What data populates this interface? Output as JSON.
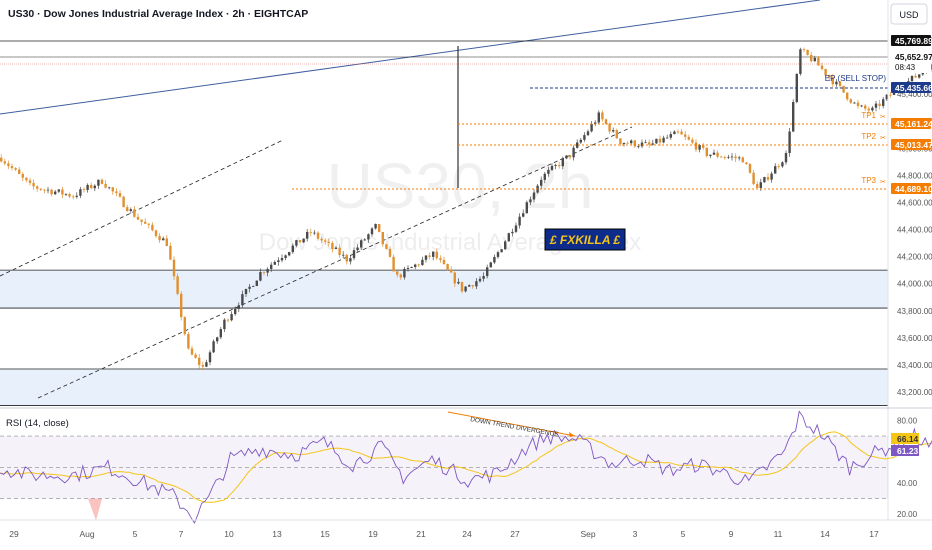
{
  "header": {
    "title": "US30 · Dow Jones Industrial Average Index · 2h · EIGHTCAP",
    "currency": "USD"
  },
  "watermark": {
    "symbol": "US30, 2h",
    "name": "Dow Jones Industrial Average Index"
  },
  "badge": {
    "text": "£ FXKILLA £",
    "bg": "#0d2b8a",
    "fg": "#f5c518"
  },
  "colors": {
    "up": "#4a4a4a",
    "down": "#e0902e",
    "trend": "#3f5fa0",
    "target": "#f57c00",
    "entry": "#1e3a8a",
    "rsi": "#7e57c2",
    "rsi_ma": "#f5c518",
    "zone": "#e8f0fb"
  },
  "chart_data": [
    {
      "type": "candlestick",
      "title": "US30 · Dow Jones Industrial Average Index · 2h · EIGHTCAP",
      "x_ticks": [
        "29",
        "Aug",
        "5",
        "7",
        "10",
        "13",
        "15",
        "19",
        "21",
        "24",
        "27",
        "Sep",
        "3",
        "5",
        "9",
        "11",
        "14",
        "17"
      ],
      "y_ticks": [
        43200,
        43400,
        43600,
        43800,
        44000,
        44200,
        44400,
        44600,
        44800,
        45000,
        45200,
        45400,
        45600,
        45800
      ],
      "ylim": [
        43100,
        45960
      ],
      "bars": 260,
      "close_path": [
        [
          0,
          44930
        ],
        [
          8,
          44720
        ],
        [
          20,
          44650
        ],
        [
          28,
          44760
        ],
        [
          38,
          44480
        ],
        [
          46,
          44300
        ],
        [
          52,
          43500
        ],
        [
          56,
          43380
        ],
        [
          62,
          43720
        ],
        [
          72,
          44080
        ],
        [
          86,
          44380
        ],
        [
          96,
          44180
        ],
        [
          104,
          44420
        ],
        [
          110,
          44050
        ],
        [
          120,
          44220
        ],
        [
          128,
          43960
        ],
        [
          134,
          44050
        ],
        [
          144,
          44500
        ],
        [
          150,
          44780
        ],
        [
          158,
          44950
        ],
        [
          166,
          45240
        ],
        [
          172,
          45050
        ],
        [
          180,
          45020
        ],
        [
          188,
          45110
        ],
        [
          196,
          44960
        ],
        [
          206,
          44920
        ],
        [
          210,
          44700
        ],
        [
          218,
          44950
        ],
        [
          222,
          45720
        ],
        [
          226,
          45640
        ],
        [
          232,
          45470
        ],
        [
          238,
          45300
        ],
        [
          242,
          45280
        ],
        [
          248,
          45420
        ],
        [
          254,
          45530
        ],
        [
          260,
          45650
        ]
      ],
      "levels": [
        {
          "name": "",
          "value": 45769.89,
          "tag": "45,769.89"
        },
        {
          "name": "",
          "value": 45652.97,
          "tag": "45,652.97",
          "countdown": "08:43"
        },
        {
          "name": "EP (SELL STOP)",
          "value": 45435.66,
          "tag": "45,435.66"
        },
        {
          "name": "TP1",
          "value": 45161.24,
          "tag": "45,161.24"
        },
        {
          "name": "TP2",
          "value": 45013.47,
          "tag": "45,013.47"
        },
        {
          "name": "TP3",
          "value": 44689.1,
          "tag": "44,689.10"
        }
      ],
      "zones": [
        {
          "from": 43820,
          "to": 44100
        },
        {
          "from": 43100,
          "to": 43370
        }
      ]
    },
    {
      "type": "line",
      "title": "RSI (14, close)",
      "y_ticks": [
        20,
        40,
        60,
        80
      ],
      "ylim": [
        12,
        88
      ],
      "band": [
        30,
        70
      ],
      "series": [
        {
          "name": "",
          "values": []
        },
        {
          "name": "",
          "values": []
        }
      ],
      "rsi_path": [
        [
          0,
          50
        ],
        [
          8,
          45
        ],
        [
          20,
          45
        ],
        [
          30,
          50
        ],
        [
          40,
          40
        ],
        [
          48,
          32
        ],
        [
          54,
          18
        ],
        [
          58,
          30
        ],
        [
          64,
          55
        ],
        [
          72,
          62
        ],
        [
          82,
          58
        ],
        [
          90,
          66
        ],
        [
          98,
          52
        ],
        [
          106,
          63
        ],
        [
          112,
          44
        ],
        [
          120,
          55
        ],
        [
          130,
          42
        ],
        [
          138,
          46
        ],
        [
          146,
          62
        ],
        [
          152,
          70
        ],
        [
          160,
          68
        ],
        [
          170,
          52
        ],
        [
          178,
          56
        ],
        [
          186,
          48
        ],
        [
          194,
          52
        ],
        [
          202,
          46
        ],
        [
          208,
          40
        ],
        [
          214,
          52
        ],
        [
          218,
          60
        ],
        [
          222,
          82
        ],
        [
          228,
          72
        ],
        [
          236,
          50
        ],
        [
          242,
          58
        ],
        [
          248,
          64
        ],
        [
          254,
          70
        ],
        [
          260,
          61
        ]
      ],
      "current": [
        {
          "value": "66.14",
          "color": "#f5c518",
          "text_color": "#333333"
        },
        {
          "value": "61.23",
          "color": "#7e57c2",
          "text_color": "#ffffff"
        }
      ],
      "annotation": "DOWN TREND DIVERGENCE"
    }
  ],
  "dates": [
    "29",
    "Aug",
    "5",
    "7",
    "10",
    "13",
    "15",
    "19",
    "21",
    "24",
    "27",
    "Sep",
    "3",
    "5",
    "9",
    "11",
    "14",
    "17"
  ]
}
